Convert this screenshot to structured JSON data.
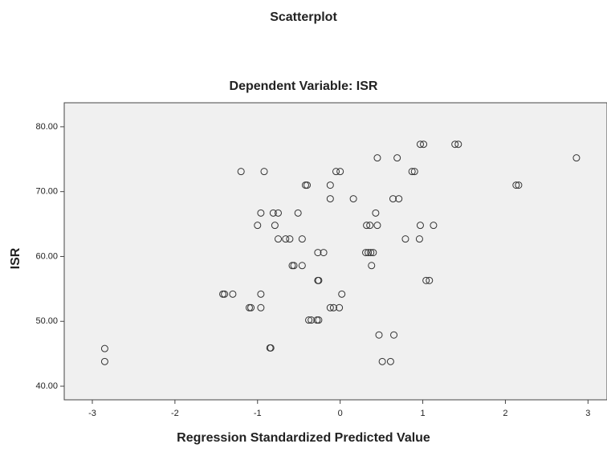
{
  "chart_data": {
    "type": "scatter",
    "title": "Scatterplot",
    "subtitle": "Dependent Variable: ISR",
    "x_label": "Regression Standardized Predicted Value",
    "y_label": "ISR",
    "x": [
      -2.85,
      -2.85,
      -1.2,
      -0.92,
      -1.42,
      -1.4,
      -1.3,
      -1.1,
      -1.08,
      -0.96,
      -0.96,
      -1.0,
      -0.96,
      -0.81,
      -0.75,
      -0.79,
      -0.75,
      -0.66,
      -0.61,
      -0.58,
      -0.56,
      -0.85,
      -0.84,
      -0.51,
      -0.46,
      -0.46,
      -0.42,
      -0.4,
      -0.38,
      -0.35,
      -0.27,
      -0.2,
      -0.27,
      -0.26,
      -0.28,
      -0.26,
      -0.12,
      -0.12,
      -0.12,
      -0.08,
      -0.05,
      0.0,
      -0.01,
      0.02,
      0.16,
      0.31,
      0.34,
      0.37,
      0.32,
      0.36,
      0.4,
      0.38,
      0.43,
      0.45,
      0.45,
      0.47,
      0.51,
      0.61,
      0.65,
      0.64,
      0.71,
      0.69,
      0.79,
      0.87,
      0.9,
      0.96,
      0.97,
      0.97,
      1.01,
      1.04,
      1.08,
      1.13,
      1.39,
      1.43,
      2.13,
      2.16,
      2.86
    ],
    "y": [
      45.8,
      43.8,
      73.1,
      73.1,
      54.2,
      54.2,
      54.2,
      52.1,
      52.1,
      52.1,
      54.2,
      64.8,
      66.7,
      66.7,
      66.7,
      64.8,
      62.7,
      62.7,
      62.7,
      58.6,
      58.6,
      45.9,
      45.9,
      66.7,
      62.7,
      58.6,
      71.0,
      71.0,
      50.2,
      50.2,
      60.6,
      60.6,
      56.3,
      56.3,
      50.2,
      50.2,
      71.0,
      68.9,
      52.1,
      52.1,
      73.1,
      73.1,
      52.1,
      54.2,
      68.9,
      60.6,
      60.6,
      60.6,
      64.8,
      64.8,
      60.6,
      58.6,
      66.7,
      64.8,
      75.2,
      47.9,
      43.8,
      43.8,
      47.9,
      68.9,
      68.9,
      75.2,
      62.7,
      73.1,
      73.1,
      62.7,
      64.8,
      77.3,
      77.3,
      56.3,
      56.3,
      64.8,
      77.3,
      77.3,
      71.0,
      71.0,
      75.2
    ],
    "xlim": [
      -3.34,
      3.23
    ],
    "ylim": [
      37.9,
      83.7
    ],
    "xticks": [
      -3,
      -2,
      -1,
      0,
      1,
      2,
      3
    ],
    "yticks": [
      {
        "value": 40,
        "label": "40.00"
      },
      {
        "value": 50,
        "label": "50.00"
      },
      {
        "value": 60,
        "label": "60.00"
      },
      {
        "value": 70,
        "label": "70.00"
      },
      {
        "value": 80,
        "label": "80.00"
      }
    ],
    "color": "#333333"
  }
}
